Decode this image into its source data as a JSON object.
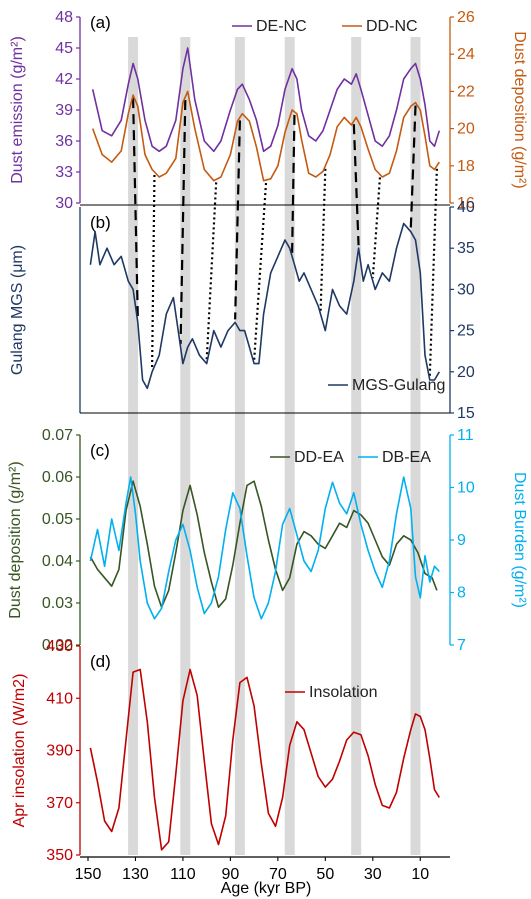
{
  "figure": {
    "xlabel": "Age (kyr BP)"
  },
  "x_axis": {
    "range": [
      150,
      0
    ],
    "ticks": [
      150,
      130,
      110,
      90,
      70,
      50,
      30,
      10
    ],
    "labels": [
      "150",
      "130",
      "110",
      "90",
      "70",
      "50",
      "30",
      "10"
    ]
  },
  "highlight_bands": [
    131,
    109,
    86,
    65,
    37,
    12
  ],
  "colors": {
    "de_nc": "#7030A0",
    "dd_nc": "#C55A11",
    "mgs": "#203864",
    "dd_ea": "#375623",
    "db_ea": "#00B0F0",
    "insolation": "#C00000",
    "band": "#D9D9D9"
  },
  "chart_data": [
    {
      "type": "line",
      "panel": "(a)",
      "y_left": {
        "label": "Dust emission (g/m²)",
        "ylim": [
          30,
          48
        ],
        "ticks": [
          "30",
          "33",
          "36",
          "39",
          "42",
          "45",
          "48"
        ]
      },
      "y_right": {
        "label": "Dust deposition (g/m²)",
        "ylim": [
          16,
          26
        ],
        "ticks": [
          "16",
          "18",
          "20",
          "22",
          "24",
          "26"
        ]
      },
      "legend": "top-right",
      "series": [
        {
          "name": "DE-NC",
          "axis": "left",
          "x": [
            148,
            144,
            140,
            136,
            133,
            131,
            129,
            126,
            123,
            120,
            117,
            113,
            110,
            108,
            105,
            101,
            97,
            94,
            90,
            87,
            85,
            82,
            79,
            76,
            73,
            70,
            67,
            64,
            62,
            60,
            57,
            54,
            51,
            48,
            45,
            42,
            39,
            37,
            35,
            32,
            29,
            26,
            23,
            20,
            17,
            14,
            12,
            10,
            8,
            6,
            4,
            2
          ],
          "y": [
            41,
            37,
            36.5,
            38,
            41.5,
            43.5,
            42,
            38,
            35.5,
            35,
            35.5,
            38,
            43,
            45,
            40,
            36,
            35,
            36,
            39,
            41,
            41.5,
            40,
            38,
            35,
            35.5,
            37.5,
            41,
            43,
            42,
            39,
            36.5,
            36,
            37,
            39,
            41,
            42,
            41.5,
            42.5,
            41,
            38.5,
            36,
            35.5,
            36.5,
            39,
            42,
            43,
            43.5,
            42,
            39.5,
            36,
            35.5,
            37
          ]
        },
        {
          "name": "DD-NC",
          "axis": "right",
          "x": [
            148,
            144,
            140,
            136,
            133,
            131,
            129,
            126,
            123,
            120,
            117,
            113,
            110,
            108,
            105,
            101,
            97,
            94,
            90,
            87,
            85,
            82,
            79,
            76,
            73,
            70,
            67,
            64,
            62,
            60,
            57,
            54,
            51,
            48,
            45,
            42,
            39,
            37,
            35,
            32,
            29,
            26,
            23,
            20,
            17,
            14,
            12,
            10,
            8,
            6,
            4,
            2
          ],
          "y": [
            20,
            18.6,
            18.2,
            18.8,
            20.8,
            21.8,
            21.2,
            18.6,
            17.8,
            17.4,
            17.6,
            18.4,
            21.4,
            22,
            20,
            17.8,
            17.2,
            17.4,
            18.6,
            20.4,
            20.8,
            20.4,
            19,
            17.2,
            17.3,
            18,
            19.8,
            21,
            20.8,
            19.4,
            17.6,
            17.4,
            17.7,
            18.6,
            20.1,
            20.6,
            20.2,
            20.6,
            20.1,
            18.9,
            17.8,
            17.4,
            17.6,
            18.8,
            20.6,
            21.2,
            21.4,
            21,
            19.6,
            18,
            17.8,
            18.2
          ]
        }
      ]
    },
    {
      "type": "line",
      "panel": "(b)",
      "y_left": {
        "label": "Gulang MGS (μm)"
      },
      "y_right": {
        "ylim": [
          15,
          40
        ],
        "ticks": [
          "15",
          "20",
          "25",
          "30",
          "35",
          "40"
        ]
      },
      "legend": "bottom-right",
      "series": [
        {
          "name": "MGS-Gulang",
          "axis": "right",
          "x": [
            149,
            147,
            145,
            142,
            139,
            136,
            133,
            131,
            129,
            127,
            125,
            123,
            120,
            117,
            114,
            112,
            110,
            108,
            106,
            103,
            100,
            97,
            94,
            91,
            88,
            86,
            84,
            82,
            80,
            78,
            76,
            73,
            70,
            67,
            65,
            63,
            61,
            59,
            56,
            53,
            50,
            47,
            44,
            41,
            38,
            36,
            34,
            32,
            29,
            26,
            23,
            20,
            17,
            14,
            12,
            10,
            8,
            6,
            4,
            2
          ],
          "y": [
            33,
            37,
            33,
            35,
            33,
            34,
            31,
            30,
            26,
            19,
            18,
            20,
            22,
            27,
            29,
            25,
            21,
            23,
            24,
            22,
            21,
            25,
            23,
            25,
            26,
            25,
            25,
            23,
            21,
            21,
            27,
            32,
            34,
            36,
            35,
            33,
            31,
            32,
            30,
            28,
            25,
            30,
            28,
            27,
            31,
            35,
            31,
            33,
            30,
            32,
            31,
            35,
            38,
            37,
            36,
            32,
            22,
            19,
            19,
            20
          ]
        }
      ]
    },
    {
      "type": "line",
      "panel": "(c)",
      "y_left": {
        "label": "Dust deposition (g/m²)",
        "ylim": [
          0.02,
          0.07
        ],
        "ticks": [
          "0.02",
          "0.03",
          "0.04",
          "0.05",
          "0.06",
          "0.07"
        ]
      },
      "y_right": {
        "label": "Dust Burden (g/m²)",
        "ylim": [
          7,
          11
        ],
        "ticks": [
          "7",
          "8",
          "9",
          "10",
          "11"
        ]
      },
      "legend": "top-right",
      "series": [
        {
          "name": "DD-EA",
          "axis": "left",
          "x": [
            149,
            146,
            143,
            140,
            137,
            134,
            131,
            128,
            125,
            122,
            119,
            116,
            113,
            110,
            107,
            104,
            101,
            98,
            95,
            92,
            89,
            86,
            83,
            80,
            77,
            74,
            71,
            68,
            65,
            62,
            59,
            56,
            53,
            50,
            47,
            44,
            41,
            38,
            35,
            32,
            29,
            26,
            23,
            20,
            17,
            14,
            11,
            8,
            5,
            3
          ],
          "y": [
            0.041,
            0.038,
            0.036,
            0.034,
            0.038,
            0.052,
            0.059,
            0.053,
            0.044,
            0.034,
            0.029,
            0.033,
            0.042,
            0.052,
            0.058,
            0.051,
            0.042,
            0.035,
            0.029,
            0.031,
            0.039,
            0.049,
            0.058,
            0.059,
            0.053,
            0.045,
            0.038,
            0.033,
            0.036,
            0.044,
            0.047,
            0.046,
            0.044,
            0.043,
            0.046,
            0.049,
            0.048,
            0.052,
            0.051,
            0.049,
            0.045,
            0.041,
            0.039,
            0.044,
            0.046,
            0.045,
            0.042,
            0.037,
            0.036,
            0.033
          ]
        },
        {
          "name": "DB-EA",
          "axis": "right",
          "x": [
            149,
            146,
            143,
            140,
            137,
            134,
            132,
            130,
            128,
            125,
            122,
            119,
            116,
            113,
            110,
            107,
            104,
            101,
            98,
            95,
            92,
            89,
            86,
            83,
            80,
            77,
            74,
            71,
            68,
            65,
            62,
            59,
            56,
            53,
            50,
            47,
            44,
            41,
            38,
            35,
            32,
            29,
            26,
            23,
            20,
            17,
            14,
            12,
            10,
            8,
            6,
            4,
            2
          ],
          "y": [
            8.6,
            9.2,
            8.5,
            9.4,
            8.8,
            9.7,
            10.2,
            9.5,
            8.6,
            7.8,
            7.5,
            7.7,
            8.4,
            9,
            9.3,
            8.8,
            8.1,
            7.6,
            7.8,
            8.3,
            9.2,
            9.9,
            9.6,
            8.7,
            7.9,
            7.5,
            7.8,
            8.4,
            9.3,
            9.6,
            9.1,
            8.6,
            8.4,
            8.8,
            9.6,
            10.1,
            9.7,
            9.5,
            9.9,
            9.3,
            8.8,
            8.4,
            8.1,
            8.6,
            9.5,
            10.2,
            9.6,
            8.3,
            7.9,
            8.7,
            8.2,
            8.5,
            8.4
          ]
        }
      ]
    },
    {
      "type": "line",
      "panel": "(d)",
      "y_left": {
        "label": "Apr insolation (W/m2)",
        "ylim": [
          350,
          430
        ],
        "ticks": [
          "350",
          "370",
          "390",
          "410",
          "430"
        ]
      },
      "legend": "top-right",
      "series": [
        {
          "name": "Insolation",
          "axis": "left",
          "x": [
            149,
            146,
            143,
            140,
            137,
            134,
            131,
            128,
            125,
            122,
            119,
            116,
            113,
            110,
            107,
            104,
            101,
            98,
            95,
            92,
            89,
            86,
            83,
            80,
            77,
            74,
            71,
            68,
            65,
            62,
            59,
            56,
            53,
            50,
            47,
            44,
            41,
            38,
            35,
            32,
            29,
            26,
            23,
            20,
            17,
            14,
            12,
            10,
            8,
            6,
            4,
            2
          ],
          "y": [
            391,
            378,
            363,
            359,
            368,
            394,
            420,
            421,
            401,
            372,
            352,
            355,
            381,
            409,
            421,
            411,
            386,
            362,
            354,
            365,
            394,
            416,
            418,
            407,
            385,
            366,
            361,
            372,
            392,
            401,
            398,
            389,
            380,
            376,
            379,
            386,
            394,
            397,
            396,
            388,
            377,
            369,
            368,
            374,
            387,
            398,
            404,
            403,
            398,
            387,
            375,
            372
          ]
        }
      ]
    }
  ]
}
